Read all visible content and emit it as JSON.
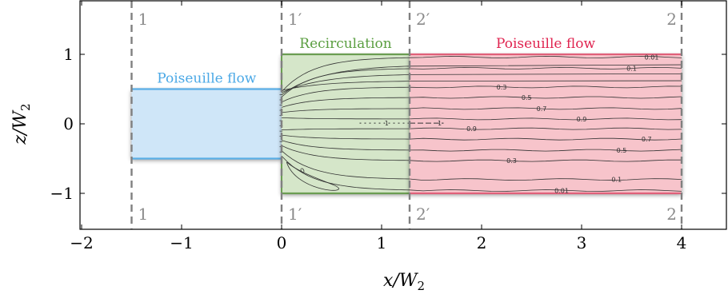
{
  "axes": {
    "xlabel": "x/W2",
    "ylabel": "z/W2",
    "xlim": [
      -2.0,
      4.4
    ],
    "ylim": [
      -1.5,
      1.7
    ],
    "xticks": [
      "−2",
      "−1",
      "0",
      "1",
      "2",
      "3",
      "4"
    ],
    "xtick_values": [
      -2,
      -1,
      0,
      1,
      2,
      3,
      4
    ],
    "yticks": [
      "1",
      "0",
      "−1"
    ],
    "ytick_values": [
      1,
      0,
      -1
    ]
  },
  "sections": [
    {
      "x": -1.5,
      "top_label": "1",
      "bottom_label": "1"
    },
    {
      "x": 0.0,
      "top_label": "1′",
      "bottom_label": "1′"
    },
    {
      "x": 1.28,
      "top_label": "2′",
      "bottom_label": "2′"
    },
    {
      "x": 4.0,
      "top_label": "2",
      "bottom_label": "2"
    }
  ],
  "regions": [
    {
      "name": "Poiseuille flow",
      "x": [
        -1.5,
        0.0
      ],
      "z": [
        -0.5,
        0.5
      ],
      "fill": "#cfe6f8",
      "edge": "#5aaee6",
      "label_color": "#4aa8e6"
    },
    {
      "name": "Recirculation",
      "x": [
        0.0,
        1.28
      ],
      "z": [
        -1.0,
        1.0
      ],
      "fill": "#d5e6c9",
      "edge": "#6b9e52",
      "label_color": "#5a9e40"
    },
    {
      "name": "Poiseuille flow",
      "x": [
        1.28,
        4.0
      ],
      "z": [
        -1.0,
        1.0
      ],
      "fill": "#f7c4cb",
      "edge": "#e0607a",
      "label_color": "#e02450"
    }
  ],
  "contour_levels_upper": [
    "0.01",
    "0.1",
    "0.3",
    "0.5",
    "0.7",
    "0.9"
  ],
  "contour_levels_lower": [
    "0.9",
    "0.7",
    "0.5",
    "0.3",
    "0.1",
    "0.01"
  ],
  "centerline_label": "1",
  "corner_label": "0",
  "colors": {
    "dashed_line": "#808080",
    "contour": "#333333",
    "axis": "#000000"
  }
}
